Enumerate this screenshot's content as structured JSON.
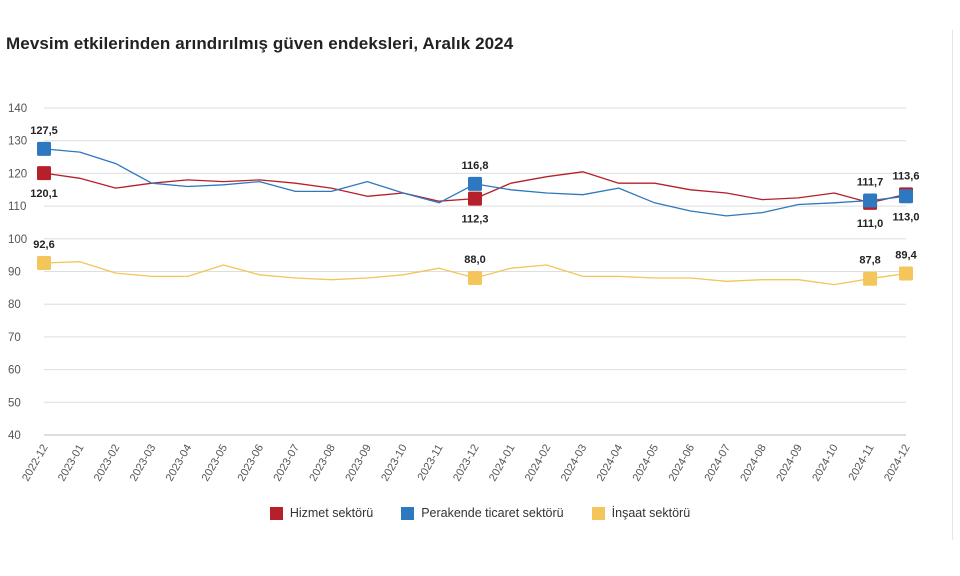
{
  "colors": {
    "hizmet": "#b5202a",
    "perakende": "#2d78be",
    "insaat": "#f3c55a",
    "grid": "#dedede",
    "axis_text": "#555555"
  },
  "chart_data": {
    "type": "line",
    "title": "Mevsim etkilerinden arındırılmış güven endeksleri, Aralık 2024",
    "ylim": [
      40,
      140
    ],
    "yticks": [
      40,
      50,
      60,
      70,
      80,
      90,
      100,
      110,
      120,
      130,
      140
    ],
    "grid": true,
    "legend_position": "bottom",
    "categories": [
      "2022-12",
      "2023-01",
      "2023-02",
      "2023-03",
      "2023-04",
      "2023-05",
      "2023-06",
      "2023-07",
      "2023-08",
      "2023-09",
      "2023-10",
      "2023-11",
      "2023-12",
      "2024-01",
      "2024-02",
      "2024-03",
      "2024-04",
      "2024-05",
      "2024-06",
      "2024-07",
      "2024-08",
      "2024-09",
      "2024-10",
      "2024-11",
      "2024-12"
    ],
    "series": [
      {
        "name": "Hizmet sektörü",
        "color": "#b5202a",
        "values": [
          120.1,
          118.5,
          115.5,
          117.0,
          118.0,
          117.5,
          118.0,
          117.0,
          115.5,
          113.0,
          114.0,
          111.5,
          112.3,
          117.0,
          119.0,
          120.5,
          117.0,
          117.0,
          115.0,
          114.0,
          112.0,
          112.5,
          114.0,
          111.0,
          113.6
        ],
        "labels": [
          {
            "index": 0,
            "text": "120,1",
            "pos": "below"
          },
          {
            "index": 12,
            "text": "112,3",
            "pos": "below"
          },
          {
            "index": 23,
            "text": "111,0",
            "pos": "below"
          },
          {
            "index": 24,
            "text": "113,6",
            "pos": "above"
          }
        ]
      },
      {
        "name": "Perakende ticaret sektörü",
        "color": "#2d78be",
        "values": [
          127.5,
          126.5,
          123.0,
          117.0,
          116.0,
          116.5,
          117.5,
          114.5,
          114.5,
          117.5,
          114.0,
          111.0,
          116.8,
          115.0,
          114.0,
          113.5,
          115.5,
          111.0,
          108.5,
          107.0,
          108.0,
          110.5,
          111.0,
          111.7,
          113.0
        ],
        "labels": [
          {
            "index": 0,
            "text": "127,5",
            "pos": "above"
          },
          {
            "index": 12,
            "text": "116,8",
            "pos": "above"
          },
          {
            "index": 23,
            "text": "111,7",
            "pos": "above"
          },
          {
            "index": 24,
            "text": "113,0",
            "pos": "below"
          }
        ]
      },
      {
        "name": "İnşaat sektörü",
        "color": "#f3c55a",
        "values": [
          92.6,
          93.0,
          89.5,
          88.5,
          88.5,
          92.0,
          89.0,
          88.0,
          87.5,
          88.0,
          89.0,
          91.0,
          88.0,
          91.0,
          92.0,
          88.5,
          88.5,
          88.0,
          88.0,
          87.0,
          87.5,
          87.5,
          86.0,
          87.8,
          89.4
        ],
        "labels": [
          {
            "index": 0,
            "text": "92,6",
            "pos": "above"
          },
          {
            "index": 12,
            "text": "88,0",
            "pos": "above"
          },
          {
            "index": 23,
            "text": "87,8",
            "pos": "above"
          },
          {
            "index": 24,
            "text": "89,4",
            "pos": "above"
          }
        ]
      }
    ]
  },
  "legend": {
    "items": [
      {
        "label": "Hizmet sektörü",
        "color": "#b5202a"
      },
      {
        "label": "Perakende ticaret sektörü",
        "color": "#2d78be"
      },
      {
        "label": "İnşaat sektörü",
        "color": "#f3c55a"
      }
    ]
  }
}
